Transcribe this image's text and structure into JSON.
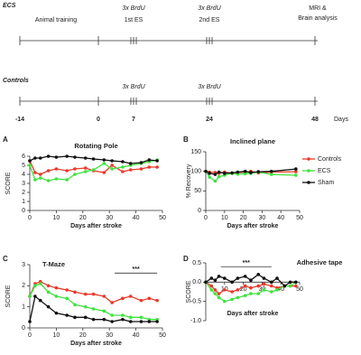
{
  "timeline": {
    "ecs": {
      "label": "ECS",
      "top": [
        "3x BrdU",
        "3x BrdU"
      ],
      "phases": [
        "Animal training",
        "1st ES",
        "2nd ES"
      ],
      "end": [
        "MRI &",
        "Brain analysis"
      ]
    },
    "controls": {
      "label": "Controls",
      "top": [
        "3x BrdU",
        "3x BrdU"
      ]
    },
    "days": [
      -14,
      0,
      7,
      24,
      48
    ],
    "days_label": "Days"
  },
  "chart_data": [
    {
      "type": "line",
      "panel": "A",
      "title": "Rotating Pole",
      "x_label": "Days after stroke",
      "y_label": "SCORE",
      "x": [
        0,
        2,
        4,
        7,
        10,
        14,
        17,
        21,
        24,
        28,
        31,
        35,
        38,
        42,
        45,
        48
      ],
      "xlim": [
        0,
        50
      ],
      "xticks": [
        0,
        10,
        20,
        30,
        40,
        50
      ],
      "ylim": [
        0,
        6
      ],
      "yticks": [
        0,
        1,
        2,
        3,
        4,
        5,
        6
      ],
      "series": [
        {
          "color": "#e8392a",
          "values": [
            5.5,
            4.2,
            4.0,
            4.4,
            4.6,
            4.4,
            4.6,
            4.7,
            4.4,
            4.2,
            5.0,
            4.3,
            4.5,
            4.6,
            4.8,
            4.8
          ]
        },
        {
          "color": "#3fe33f",
          "values": [
            5.0,
            3.4,
            3.6,
            3.3,
            3.5,
            3.4,
            4.0,
            4.3,
            4.5,
            5.2,
            4.6,
            4.8,
            5.0,
            5.2,
            5.4,
            5.6
          ]
        },
        {
          "color": "#111111",
          "values": [
            5.5,
            5.8,
            5.8,
            6.0,
            5.9,
            6.0,
            5.9,
            5.8,
            5.7,
            5.6,
            5.5,
            5.4,
            5.2,
            5.3,
            5.6,
            5.5
          ]
        }
      ]
    },
    {
      "type": "line",
      "panel": "B",
      "title": "Inclined plane",
      "x_label": "Days after stroke",
      "y_label": "% Recovery",
      "legend": "right",
      "x": [
        0,
        2,
        5,
        7,
        10,
        14,
        17,
        21,
        24,
        28,
        35,
        48
      ],
      "xlim": [
        0,
        50
      ],
      "xticks": [
        0,
        10,
        20,
        30,
        40,
        50
      ],
      "ylim": [
        0,
        150
      ],
      "yticks": [
        0,
        50,
        100,
        150
      ],
      "series": [
        {
          "name": "Controls",
          "color": "#e8392a",
          "values": [
            100,
            98,
            97,
            95,
            98,
            95,
            97,
            98,
            100,
            96,
            98,
            99
          ]
        },
        {
          "name": "ECS",
          "color": "#3fe33f",
          "values": [
            100,
            85,
            75,
            86,
            90,
            95,
            93,
            94,
            95,
            98,
            92,
            90
          ]
        },
        {
          "name": "Sham",
          "color": "#111111",
          "values": [
            100,
            95,
            92,
            98,
            95,
            96,
            98,
            100,
            97,
            99,
            100,
            106
          ]
        }
      ]
    },
    {
      "type": "line",
      "panel": "C",
      "title": "T-Maze",
      "x_label": "Days after stroke",
      "y_label": "SCORE",
      "x": [
        0,
        2,
        4,
        7,
        10,
        14,
        17,
        21,
        24,
        28,
        31,
        35,
        38,
        42,
        45,
        48
      ],
      "xlim": [
        0,
        50
      ],
      "xticks": [
        0,
        10,
        20,
        30,
        40,
        50
      ],
      "ylim": [
        0,
        3
      ],
      "yticks": [
        0,
        1,
        2,
        3
      ],
      "significance": {
        "label": "***",
        "from": 32,
        "to": 48,
        "y": 2.6
      },
      "series": [
        {
          "color": "#e8392a",
          "values": [
            1.5,
            2.1,
            2.2,
            2.0,
            1.9,
            1.8,
            1.7,
            1.6,
            1.6,
            1.5,
            1.2,
            1.4,
            1.5,
            1.3,
            1.4,
            1.3
          ]
        },
        {
          "color": "#3fe33f",
          "values": [
            1.5,
            2.0,
            2.1,
            1.7,
            1.5,
            1.4,
            1.1,
            1.0,
            0.9,
            0.8,
            0.6,
            0.6,
            0.5,
            0.5,
            0.4,
            0.4
          ]
        },
        {
          "color": "#111111",
          "values": [
            0.3,
            1.5,
            1.3,
            1.0,
            0.7,
            0.6,
            0.5,
            0.5,
            0.4,
            0.4,
            0.3,
            0.4,
            0.3,
            0.3,
            0.3,
            0.3
          ]
        }
      ]
    },
    {
      "type": "line",
      "panel": "D",
      "title": "Adhesive tape",
      "x_label": "Days after stroke",
      "y_label": "SCORE",
      "xaxis_position": "zero",
      "x": [
        0,
        3,
        5,
        7,
        10,
        14,
        17,
        21,
        24,
        28,
        31,
        35,
        38,
        42,
        45,
        48
      ],
      "xlim": [
        0,
        50
      ],
      "xticks": [
        10,
        20,
        30,
        40,
        50
      ],
      "ylim": [
        -1.0,
        0.5
      ],
      "yticks": [
        {
          "value": -1.0,
          "label": "-1.0"
        },
        {
          "value": -0.5,
          "label": "-0.5"
        },
        {
          "value": 0,
          "label": "0.0"
        },
        {
          "value": 0.5,
          "label": "0.5"
        }
      ],
      "significance": {
        "label": "***",
        "from": 8,
        "to": 35,
        "y": 0.4
      },
      "series": [
        {
          "color": "#e8392a",
          "values": [
            0,
            -0.1,
            -0.2,
            -0.3,
            -0.2,
            -0.25,
            -0.2,
            -0.1,
            -0.15,
            -0.1,
            -0.05,
            -0.1,
            -0.15,
            -0.1,
            -0.1,
            -0.1
          ]
        },
        {
          "color": "#3fe33f",
          "values": [
            0,
            -0.2,
            -0.3,
            -0.4,
            -0.5,
            -0.45,
            -0.4,
            -0.35,
            -0.3,
            -0.3,
            -0.2,
            -0.25,
            -0.2,
            -0.1,
            -0.1,
            0.0
          ]
        },
        {
          "color": "#111111",
          "values": [
            0,
            0.1,
            0.05,
            0.15,
            0.1,
            0.0,
            0.1,
            0.15,
            0.05,
            0.2,
            0.1,
            0.0,
            0.1,
            -0.1,
            0.0,
            0.0
          ]
        }
      ]
    }
  ]
}
